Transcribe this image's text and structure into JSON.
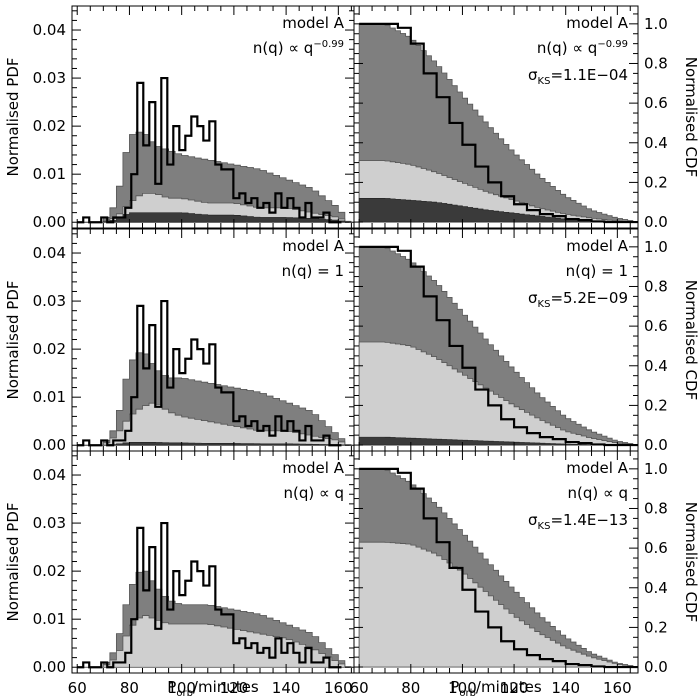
{
  "colors": {
    "dark_component": "#3a3a3a",
    "mid_component": "#7f7f7f",
    "light_component": "#cfcfcf",
    "observed_outline": "#000000",
    "background": "#ffffff"
  },
  "axes": {
    "x_label_main": "P",
    "x_label_sub": "orb",
    "x_label_rest": "/minutes",
    "y_label_left": "Normalised PDF",
    "y_label_right": "Normalised CDF",
    "x_ticks": [
      "60",
      "80",
      "100",
      "120",
      "140",
      "160"
    ],
    "y_ticks_pdf": [
      "0.00",
      "0.01",
      "0.02",
      "0.03",
      "0.04"
    ],
    "y_ticks_cdf": [
      "0.0",
      "0.2",
      "0.4",
      "0.6",
      "0.8",
      "1.0"
    ]
  },
  "chart_data": [
    {
      "type": "area",
      "panel": "pdf",
      "row": 0,
      "model_label": "model A",
      "nq_label": "n(q) ∝ q",
      "nq_exponent": "−0.99",
      "xlim": [
        58,
        166
      ],
      "ylim": [
        -0.0012,
        0.045
      ],
      "x": [
        60,
        70,
        75,
        80,
        85,
        90,
        95,
        100,
        110,
        120,
        130,
        140,
        150,
        160,
        164
      ],
      "total": [
        0,
        0,
        0.004,
        0.018,
        0.019,
        0.016,
        0.015,
        0.014,
        0.013,
        0.012,
        0.011,
        0.009,
        0.007,
        0.003,
        0
      ],
      "light_layer": [
        0,
        0,
        0.001,
        0.004,
        0.006,
        0.006,
        0.005,
        0.005,
        0.004,
        0.004,
        0.003,
        0.003,
        0.002,
        0.001,
        0
      ],
      "dark_layer": [
        0,
        0,
        0.0005,
        0.002,
        0.002,
        0.002,
        0.002,
        0.002,
        0.0015,
        0.0015,
        0.001,
        0.001,
        0.0008,
        0.0004,
        0
      ],
      "observed": [
        0,
        0.001,
        0,
        0,
        0.001,
        0,
        0.001,
        0.001,
        0.003,
        0.01,
        0.029,
        0.016,
        0.025,
        0.008,
        0.03,
        0.012,
        0.02,
        0.015,
        0.018,
        0.022,
        0.02,
        0.017,
        0.021,
        0.012,
        0.011,
        0.011,
        0.005,
        0.006,
        0.004,
        0.005,
        0.003,
        0.004,
        0.002,
        0.006,
        0.003,
        0.005,
        0.003,
        0.001,
        0.004,
        0.001,
        0.001,
        0.002,
        0,
        0
      ]
    },
    {
      "type": "area",
      "panel": "cdf",
      "row": 0,
      "model_label": "model A",
      "nq_label": "n(q) ∝ q",
      "nq_exponent": "−0.99",
      "sigma_label": "σ",
      "sigma_sub": "KS",
      "sigma_value": "=1.1E−04",
      "xlim": [
        58,
        168
      ],
      "ylim": [
        -0.03,
        1.09
      ],
      "x": [
        60,
        70,
        80,
        90,
        100,
        110,
        120,
        130,
        140,
        150,
        160,
        168
      ],
      "total": [
        1,
        1,
        0.93,
        0.8,
        0.64,
        0.49,
        0.35,
        0.23,
        0.13,
        0.06,
        0.02,
        0
      ],
      "light_layer": [
        0.31,
        0.31,
        0.29,
        0.25,
        0.2,
        0.15,
        0.11,
        0.07,
        0.04,
        0.02,
        0.005,
        0
      ],
      "dark_layer": [
        0.12,
        0.12,
        0.11,
        0.1,
        0.08,
        0.06,
        0.045,
        0.03,
        0.015,
        0.007,
        0.002,
        0
      ],
      "observed": [
        1,
        1,
        1,
        0.98,
        0.9,
        0.75,
        0.63,
        0.5,
        0.39,
        0.28,
        0.2,
        0.13,
        0.09,
        0.06,
        0.04,
        0.03,
        0.015,
        0.01,
        0.003,
        0,
        0,
        0
      ]
    },
    {
      "type": "area",
      "panel": "pdf",
      "row": 1,
      "model_label": "model A",
      "nq_label": "n(q) = 1",
      "xlim": [
        58,
        166
      ],
      "ylim": [
        -0.0012,
        0.045
      ],
      "x": [
        60,
        70,
        75,
        80,
        85,
        90,
        95,
        100,
        110,
        120,
        130,
        140,
        150,
        160,
        164
      ],
      "total": [
        0,
        0,
        0.004,
        0.017,
        0.02,
        0.016,
        0.014,
        0.014,
        0.013,
        0.012,
        0.011,
        0.009,
        0.007,
        0.002,
        0
      ],
      "light_layer": [
        0,
        0,
        0.002,
        0.006,
        0.008,
        0.009,
        0.007,
        0.006,
        0.005,
        0.004,
        0.003,
        0.003,
        0.002,
        0.001,
        0
      ],
      "dark_layer": [
        0,
        0,
        0.0002,
        0.0006,
        0.0006,
        0.0006,
        0.0005,
        0.0005,
        0.0004,
        0.0004,
        0.0003,
        0.0003,
        0.0002,
        0.0001,
        0
      ],
      "observed": [
        0,
        0.001,
        0,
        0,
        0.001,
        0,
        0.001,
        0.001,
        0.003,
        0.01,
        0.029,
        0.016,
        0.025,
        0.008,
        0.03,
        0.012,
        0.02,
        0.015,
        0.018,
        0.022,
        0.02,
        0.017,
        0.021,
        0.012,
        0.011,
        0.011,
        0.005,
        0.006,
        0.004,
        0.005,
        0.003,
        0.004,
        0.002,
        0.006,
        0.003,
        0.005,
        0.003,
        0.001,
        0.004,
        0.001,
        0.001,
        0.002,
        0,
        0
      ]
    },
    {
      "type": "area",
      "panel": "cdf",
      "row": 1,
      "model_label": "model A",
      "nq_label": "n(q) = 1",
      "sigma_label": "σ",
      "sigma_sub": "KS",
      "sigma_value": "=5.2E−09",
      "xlim": [
        58,
        168
      ],
      "ylim": [
        -0.03,
        1.09
      ],
      "x": [
        60,
        70,
        80,
        90,
        100,
        110,
        120,
        130,
        140,
        150,
        160,
        168
      ],
      "total": [
        1,
        1,
        0.93,
        0.82,
        0.67,
        0.52,
        0.38,
        0.25,
        0.14,
        0.07,
        0.02,
        0
      ],
      "light_layer": [
        0.52,
        0.52,
        0.5,
        0.44,
        0.36,
        0.28,
        0.2,
        0.13,
        0.07,
        0.035,
        0.01,
        0
      ],
      "dark_layer": [
        0.04,
        0.04,
        0.035,
        0.03,
        0.025,
        0.02,
        0.015,
        0.01,
        0.005,
        0.002,
        0.001,
        0
      ],
      "observed": [
        1,
        1,
        1,
        0.98,
        0.9,
        0.75,
        0.63,
        0.5,
        0.39,
        0.28,
        0.2,
        0.13,
        0.09,
        0.06,
        0.04,
        0.03,
        0.015,
        0.01,
        0.003,
        0,
        0,
        0
      ]
    },
    {
      "type": "area",
      "panel": "pdf",
      "row": 2,
      "model_label": "model A",
      "nq_label": "n(q) ∝ q",
      "xlim": [
        58,
        166
      ],
      "ylim": [
        -0.0012,
        0.045
      ],
      "x": [
        60,
        70,
        75,
        80,
        85,
        90,
        95,
        100,
        110,
        120,
        130,
        140,
        150,
        160,
        164
      ],
      "total": [
        0,
        0,
        0.004,
        0.016,
        0.021,
        0.017,
        0.014,
        0.013,
        0.013,
        0.012,
        0.011,
        0.009,
        0.007,
        0.002,
        0
      ],
      "light_layer": [
        0,
        0,
        0.002,
        0.008,
        0.011,
        0.01,
        0.009,
        0.009,
        0.009,
        0.008,
        0.007,
        0.006,
        0.004,
        0.001,
        0
      ],
      "observed": [
        0,
        0.001,
        0,
        0,
        0.001,
        0,
        0.001,
        0.001,
        0.003,
        0.01,
        0.029,
        0.016,
        0.025,
        0.008,
        0.03,
        0.012,
        0.02,
        0.015,
        0.018,
        0.022,
        0.02,
        0.017,
        0.021,
        0.012,
        0.011,
        0.011,
        0.005,
        0.006,
        0.004,
        0.005,
        0.003,
        0.004,
        0.002,
        0.006,
        0.003,
        0.005,
        0.003,
        0.001,
        0.004,
        0.001,
        0.001,
        0.002,
        0,
        0
      ]
    },
    {
      "type": "area",
      "panel": "cdf",
      "row": 2,
      "model_label": "model A",
      "nq_label": "n(q) ∝ q",
      "sigma_label": "σ",
      "sigma_sub": "KS",
      "sigma_value": "=1.4E−13",
      "xlim": [
        58,
        168
      ],
      "ylim": [
        -0.03,
        1.09
      ],
      "x": [
        60,
        70,
        80,
        90,
        100,
        110,
        120,
        130,
        140,
        150,
        160,
        168
      ],
      "total": [
        1,
        1,
        0.93,
        0.82,
        0.68,
        0.53,
        0.39,
        0.26,
        0.15,
        0.07,
        0.02,
        0
      ],
      "light_layer": [
        0.63,
        0.63,
        0.62,
        0.57,
        0.48,
        0.37,
        0.26,
        0.17,
        0.1,
        0.05,
        0.015,
        0
      ],
      "observed": [
        1,
        1,
        1,
        0.98,
        0.9,
        0.75,
        0.63,
        0.5,
        0.39,
        0.28,
        0.2,
        0.13,
        0.09,
        0.06,
        0.04,
        0.03,
        0.015,
        0.01,
        0.003,
        0,
        0,
        0
      ]
    }
  ]
}
